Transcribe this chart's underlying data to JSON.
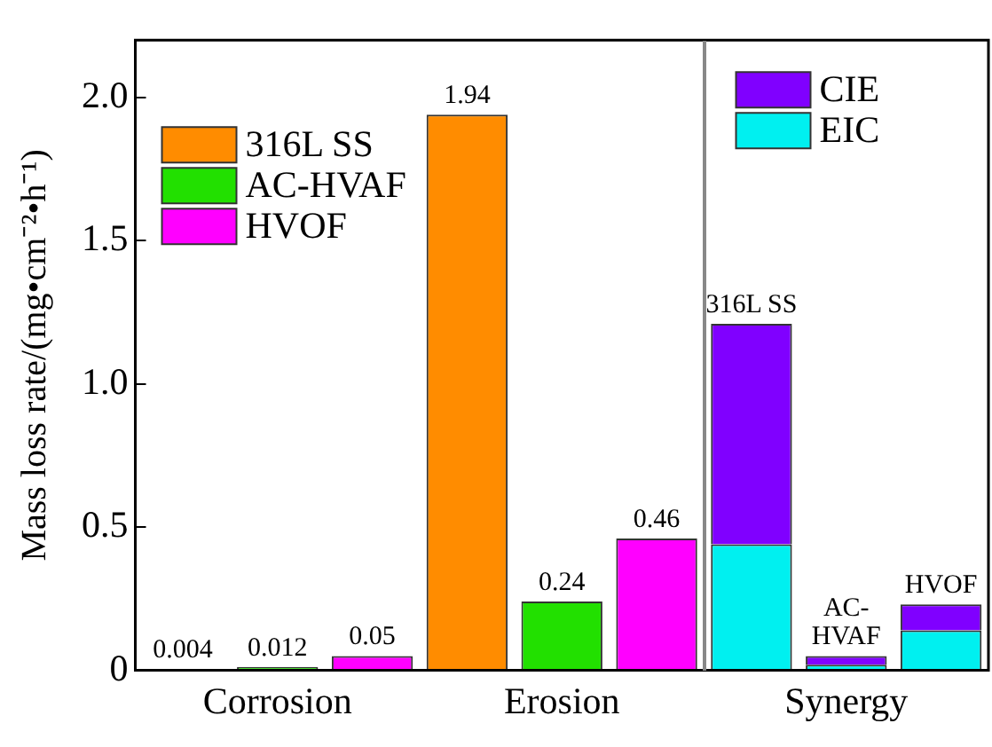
{
  "chart_data": {
    "type": "bar",
    "stacked": true,
    "legend": "top left",
    "ylabel": "Mass loss rate/(mg•cm⁻²•h⁻¹)",
    "categories": [
      null,
      "Corrosion",
      null,
      null,
      "Erosion",
      null,
      null,
      "Synergy",
      null
    ],
    "ylim": [
      0,
      2.2
    ],
    "yticks": [
      0,
      0.5,
      {
        "value": 1,
        "label": "1.0"
      },
      1.5,
      {
        "value": 2,
        "label": "2.0"
      }
    ],
    "series": [
      {
        "name": "316L SS",
        "color": "#ff8c00",
        "values": [
          0.004,
          null,
          null,
          1.94,
          null,
          null,
          null,
          null,
          null
        ],
        "value_labels": [
          "0.004",
          null,
          null,
          "1.94",
          null,
          null,
          null,
          null,
          null
        ]
      },
      {
        "name": "AC-HVAF",
        "color": "#22e000",
        "values": [
          null,
          0.012,
          null,
          null,
          0.24,
          null,
          null,
          null,
          null
        ],
        "value_labels": [
          null,
          "0.012",
          null,
          null,
          "0.24",
          null,
          null,
          null,
          null
        ]
      },
      {
        "name": "HVOF",
        "color": "#ff00ff",
        "values": [
          null,
          null,
          0.05,
          null,
          null,
          0.46,
          null,
          null,
          null
        ],
        "value_labels": [
          null,
          null,
          "0.05",
          null,
          null,
          "0.46",
          null,
          null,
          null
        ]
      },
      {
        "name": "EIC",
        "color": "#00f0f0",
        "values": [
          null,
          null,
          null,
          null,
          null,
          null,
          0.44,
          0.02,
          0.14
        ]
      },
      {
        "name": "CIE",
        "color": "#8000ff",
        "values": [
          null,
          null,
          null,
          null,
          null,
          null,
          0.77,
          0.03,
          0.09
        ]
      }
    ],
    "annotations": [
      {
        "text": "316L SS",
        "y": 1.21
      },
      {
        "text": "AC-HVAF",
        "y": 0.05
      },
      {
        "text": "HVOF",
        "y": 0.23
      }
    ]
  }
}
